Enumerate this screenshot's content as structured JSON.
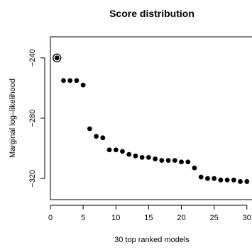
{
  "chart_data": {
    "type": "scatter",
    "title": "Score distribution",
    "xlabel": "30 top ranked models",
    "ylabel": "Marginal log–likelihood",
    "xlim": [
      0,
      31
    ],
    "ylim": [
      -334,
      -226
    ],
    "x_ticks": [
      0,
      5,
      10,
      15,
      20,
      25,
      30
    ],
    "x_tick_labels": [
      "0",
      "5",
      "10",
      "15",
      "20",
      "25",
      "30"
    ],
    "y_ticks": [
      -240,
      -280,
      -320
    ],
    "y_tick_labels": [
      "−240",
      "−280",
      "−320"
    ],
    "grid": false,
    "highlighted_point_index": 0,
    "series": [
      {
        "x": [
          1,
          2,
          3,
          4,
          5,
          6,
          7,
          8,
          9,
          10,
          11,
          12,
          13,
          14,
          15,
          16,
          17,
          18,
          19,
          20,
          21,
          22,
          23,
          24,
          25,
          26,
          27,
          28,
          29,
          30
        ],
        "values": [
          -240,
          -255,
          -255,
          -255,
          -258,
          -287,
          -292,
          -293,
          -301,
          -301,
          -302,
          -304,
          -305,
          -306,
          -306,
          -307,
          -308,
          -308,
          -308,
          -309,
          -309,
          -313,
          -319,
          -320,
          -320,
          -321,
          -321,
          -321,
          -322,
          -322
        ]
      }
    ]
  }
}
